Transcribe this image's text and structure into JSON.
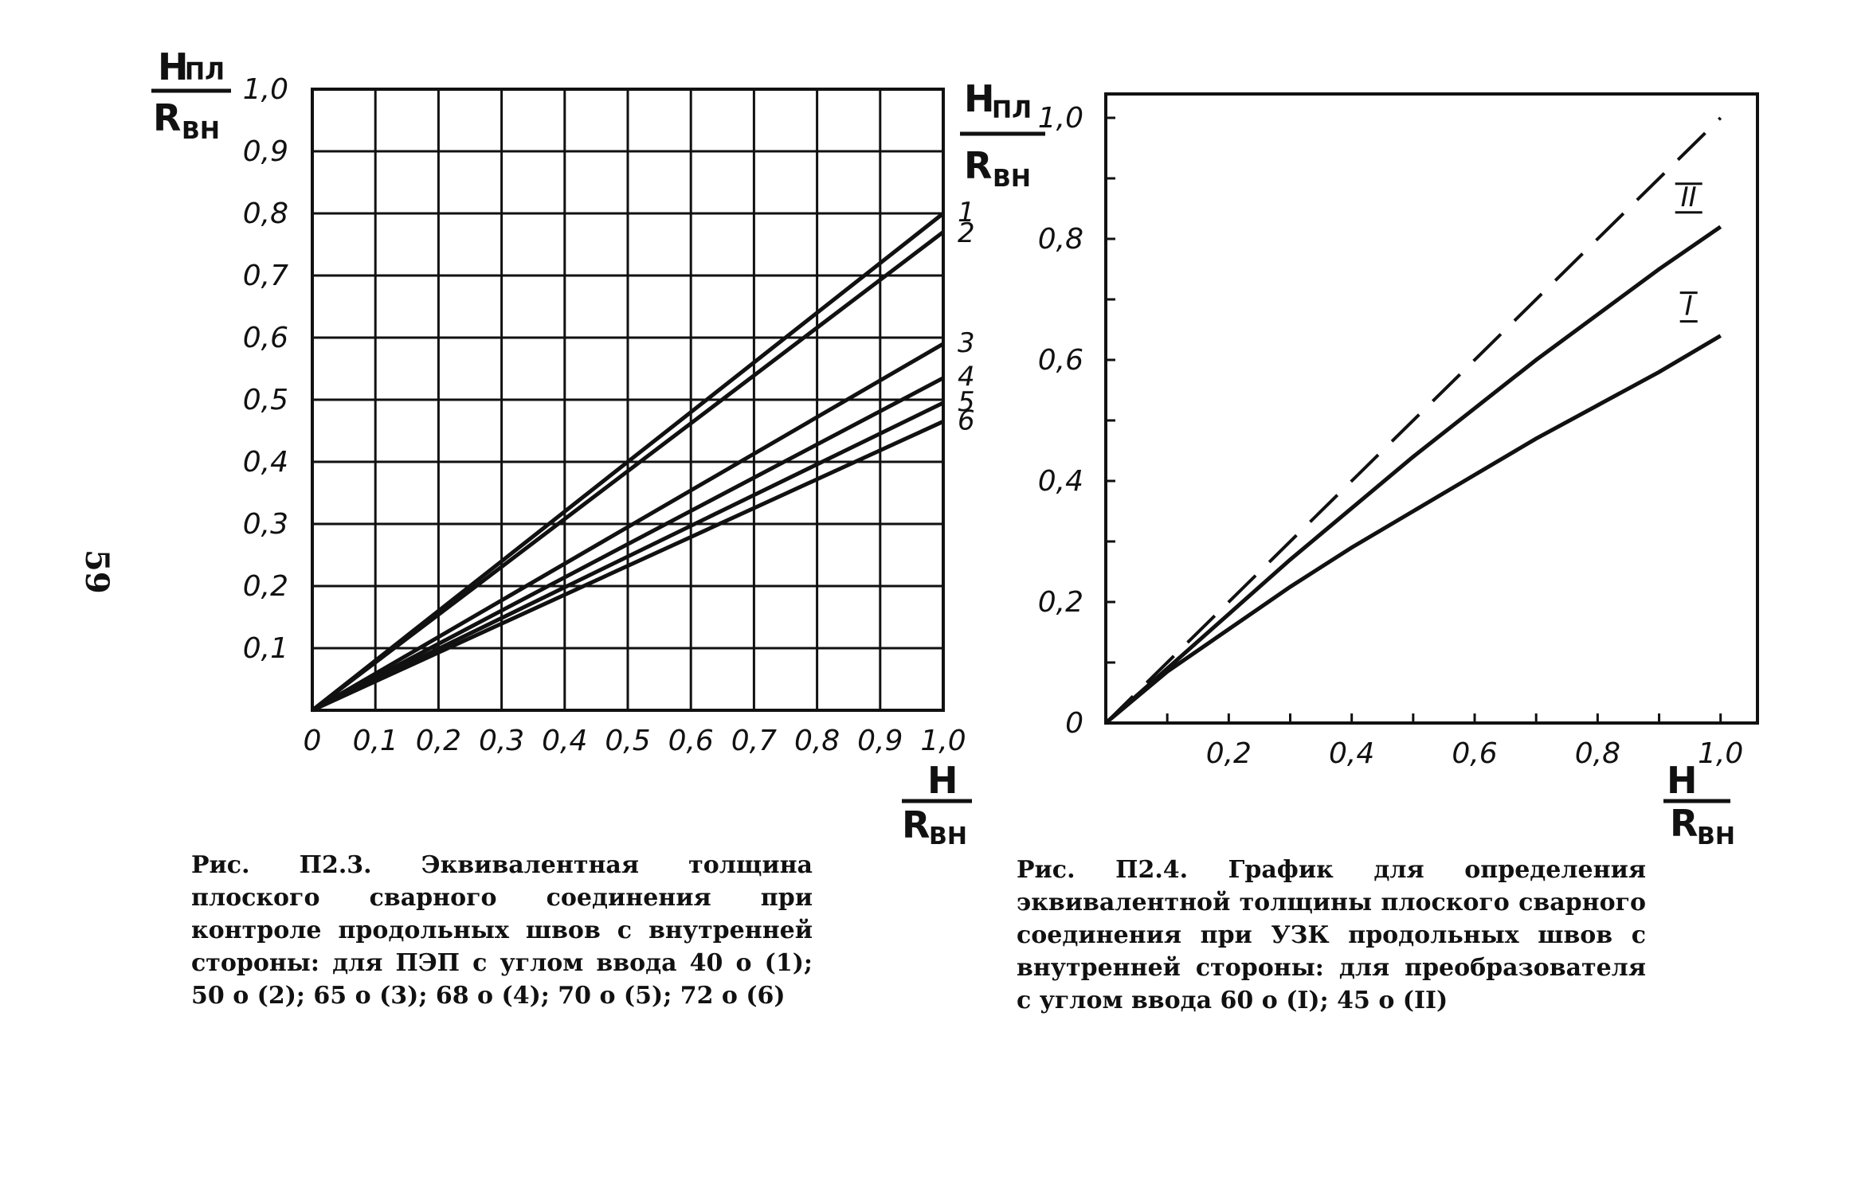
{
  "page_number": "59",
  "chart_data": [
    {
      "type": "line",
      "y_fraction": {
        "num": "H",
        "num_sub": "ПЛ",
        "den": "R",
        "den_sub": "ВН"
      },
      "x_fraction": {
        "num": "H",
        "den": "R",
        "den_sub": "ВН"
      },
      "x": [
        0,
        1.0
      ],
      "x_ticks": [
        "0",
        "0,1",
        "0,2",
        "0,3",
        "0,4",
        "0,5",
        "0,6",
        "0,7",
        "0,8",
        "0,9",
        "1,0"
      ],
      "y_ticks": [
        "0,1",
        "0,2",
        "0,3",
        "0,4",
        "0,5",
        "0,6",
        "0,7",
        "0,8",
        "0,9",
        "1,0"
      ],
      "xlim": [
        0,
        1.0
      ],
      "ylim": [
        0,
        1.0
      ],
      "grid": true,
      "series": [
        {
          "name": "1",
          "values": [
            0,
            0.8
          ]
        },
        {
          "name": "2",
          "values": [
            0,
            0.77
          ]
        },
        {
          "name": "3",
          "values": [
            0,
            0.59
          ]
        },
        {
          "name": "4",
          "values": [
            0,
            0.535
          ]
        },
        {
          "name": "5",
          "values": [
            0,
            0.495
          ]
        },
        {
          "name": "6",
          "values": [
            0,
            0.465
          ]
        }
      ],
      "caption": "Рис. П2.3. Эквивалентная толщина плоского сварного соединения при контроле продольных швов с внутренней стороны: для ПЭП с углом ввода 40 о (1); 50 о (2); 65 о (3); 68 о (4); 70 о (5); 72 о (6)"
    },
    {
      "type": "line",
      "y_fraction": {
        "num": "H",
        "num_sub": "ПЛ",
        "den": "R",
        "den_sub": "ВН"
      },
      "x_fraction": {
        "num": "H",
        "den": "R",
        "den_sub": "ВН"
      },
      "x_ticks": [
        "0,2",
        "0,4",
        "0,6",
        "0,8",
        "1,0"
      ],
      "y_ticks": [
        "0",
        "0,2",
        "0,4",
        "0,6",
        "0,8",
        "1,0"
      ],
      "xlim": [
        0,
        1.06
      ],
      "ylim": [
        0,
        1.0
      ],
      "grid": false,
      "series": [
        {
          "name": "I",
          "x": [
            0,
            0.1,
            0.2,
            0.3,
            0.4,
            0.5,
            0.6,
            0.7,
            0.8,
            0.9,
            1.0
          ],
          "values": [
            0,
            0.085,
            0.155,
            0.225,
            0.29,
            0.35,
            0.41,
            0.47,
            0.525,
            0.58,
            0.64
          ]
        },
        {
          "name": "II",
          "x": [
            0,
            0.1,
            0.2,
            0.3,
            0.4,
            0.5,
            0.6,
            0.7,
            0.8,
            0.9,
            1.0
          ],
          "values": [
            0,
            0.09,
            0.18,
            0.27,
            0.355,
            0.44,
            0.52,
            0.6,
            0.675,
            0.75,
            0.82
          ]
        },
        {
          "name": "",
          "dashed": true,
          "x": [
            0,
            1.0
          ],
          "values": [
            0,
            1.0
          ]
        }
      ],
      "caption": "Рис. П2.4. График для определения эквивалентной толщины плоского сварного соединения при УЗК продольных швов с внутренней стороны: для преобразователя с углом ввода 60 о (I); 45 о (II)"
    }
  ]
}
